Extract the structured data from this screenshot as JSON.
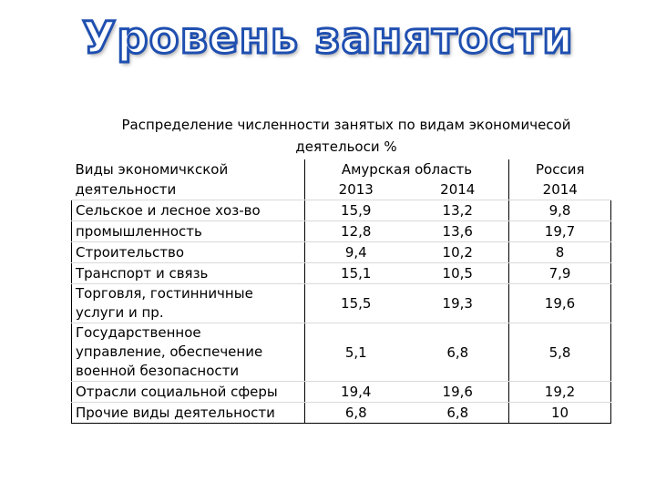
{
  "title": "Уровень занятости",
  "caption": {
    "line1": "Распределение численности занятых по видам экономичесой",
    "line2": "деятельоси %"
  },
  "table": {
    "header": {
      "col1_line1": "Виды экономичкской",
      "col1_line2": "деятельности",
      "region": "Амурская область",
      "country": "Россия",
      "year1": "2013",
      "year2": "2014",
      "year3": "2014"
    },
    "rows": [
      {
        "label": "Сельское и лесное хоз-во",
        "v2013": "15,9",
        "v2014": "13,2",
        "russia": "9,8"
      },
      {
        "label": "промышленность",
        "v2013": "12,8",
        "v2014": "13,6",
        "russia": "19,7"
      },
      {
        "label": "Строительство",
        "v2013": "9,4",
        "v2014": "10,2",
        "russia": "8"
      },
      {
        "label": "Транспорт и связь",
        "v2013": "15,1",
        "v2014": "10,5",
        "russia": "7,9"
      },
      {
        "label_line1": "Торговля, гостинничные",
        "label_line2": "услуги и пр.",
        "v2013": "15,5",
        "v2014": "19,3",
        "russia": "19,6"
      },
      {
        "label_line1": "Государственное",
        "label_line2": "управление, обеспечение",
        "label_line3": "военной безопасности",
        "v2013": "5,1",
        "v2014": "6,8",
        "russia": "5,8"
      },
      {
        "label": "Отрасли социальной сферы",
        "v2013": "19,4",
        "v2014": "19,6",
        "russia": "19,2"
      },
      {
        "label": "Прочие виды деятельности",
        "v2013": "6,8",
        "v2014": "6,8",
        "russia": "10"
      }
    ]
  }
}
